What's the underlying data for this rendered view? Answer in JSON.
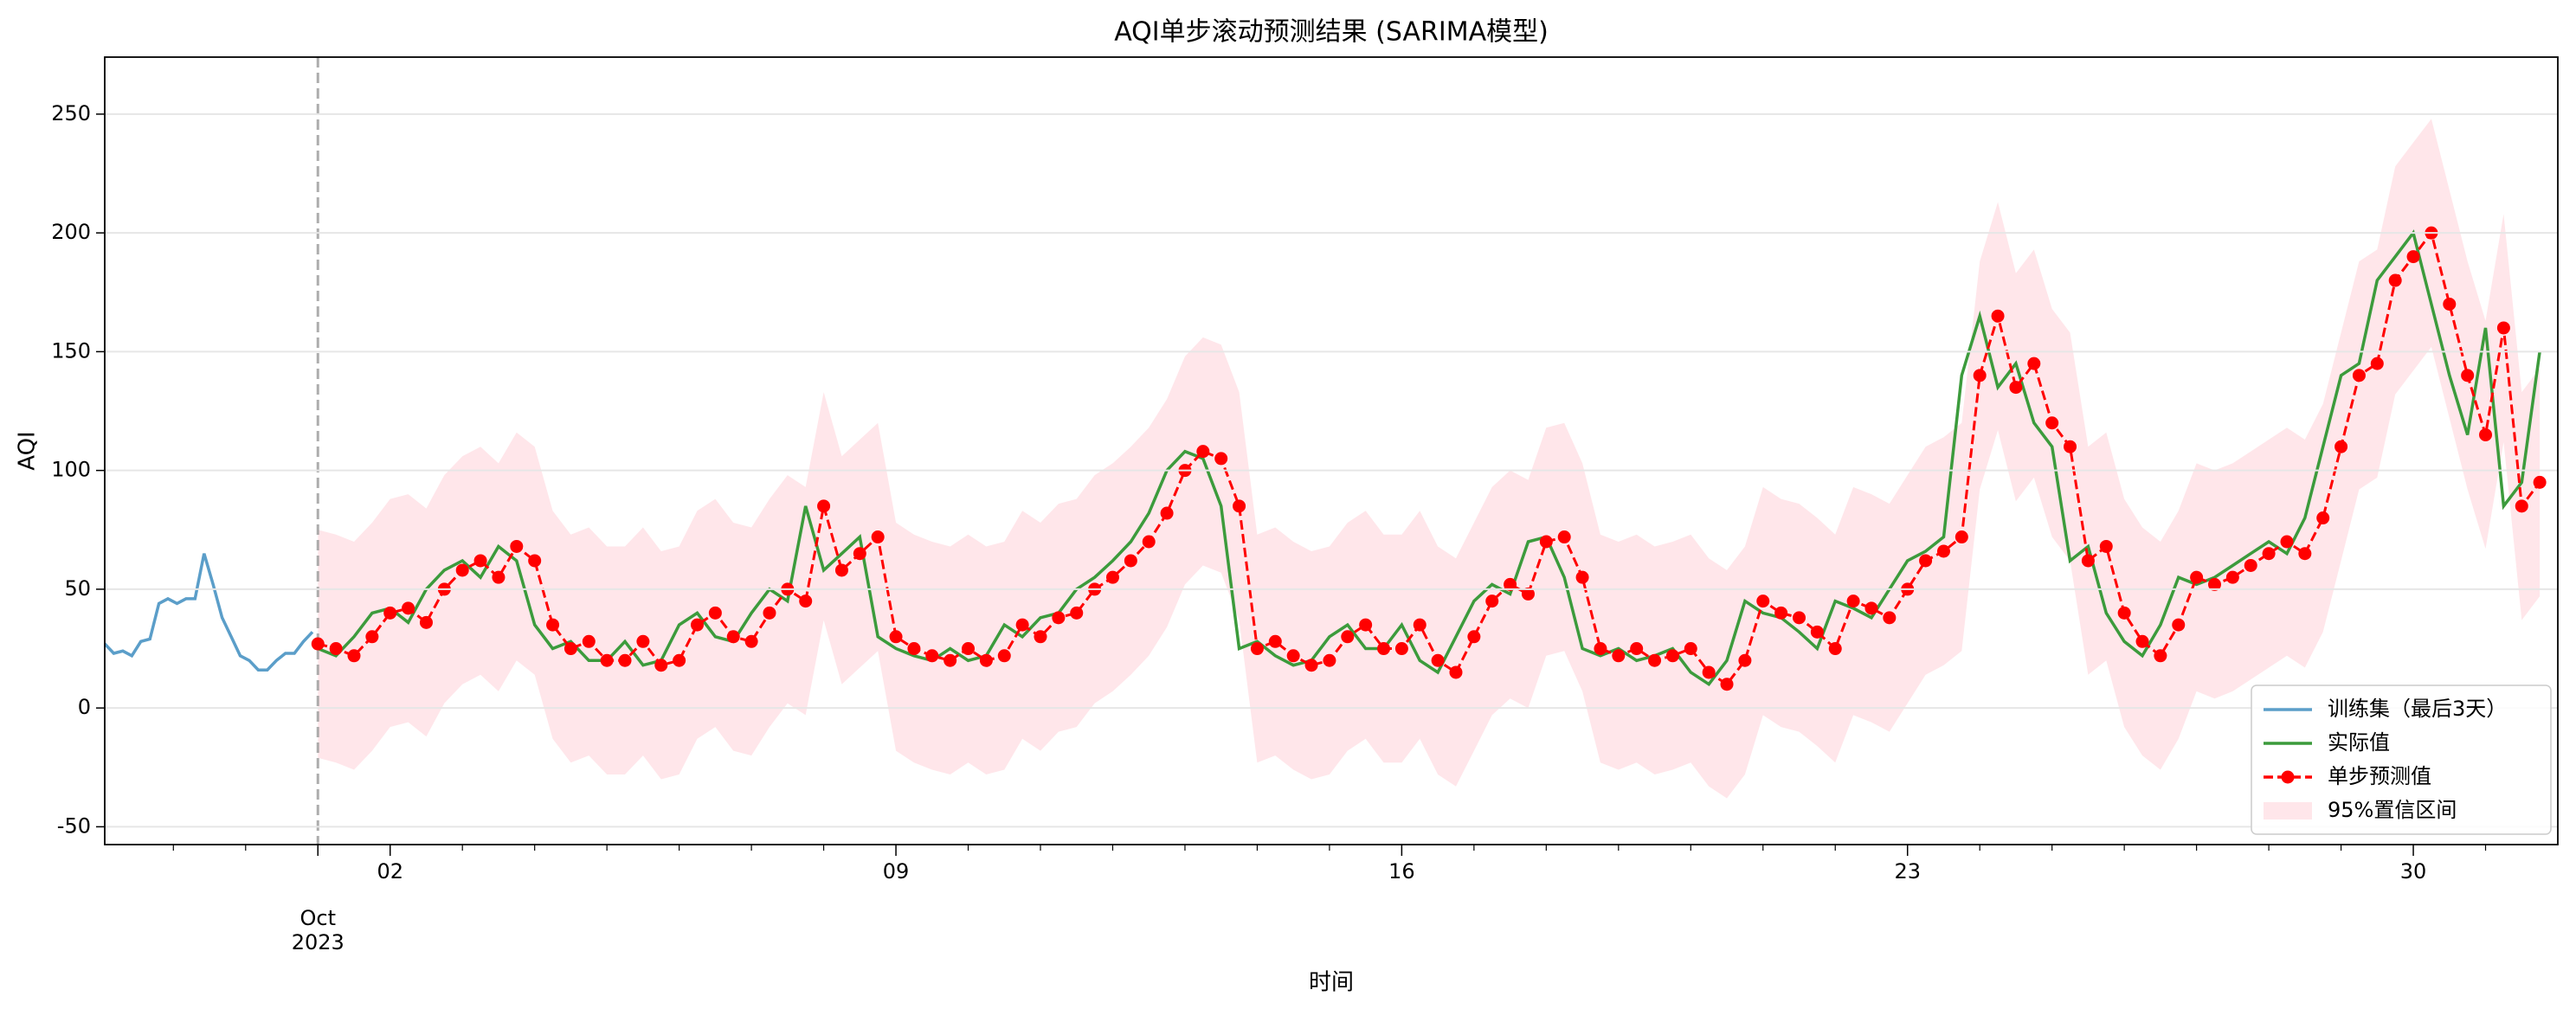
{
  "chart_data": {
    "type": "line",
    "title": "AQI单步滚动预测结果 (SARIMA模型)",
    "xlabel": "时间",
    "ylabel": "AQI",
    "xlim": [
      -1.95,
      32
    ],
    "ylim": [
      -57.5,
      274
    ],
    "yticks": [
      -50,
      0,
      50,
      100,
      150,
      200,
      250
    ],
    "xticks": [
      {
        "value": 1,
        "label": "Oct\n2023"
      },
      {
        "value": 2,
        "label": "02"
      },
      {
        "value": 9,
        "label": "09"
      },
      {
        "value": 16,
        "label": "16"
      },
      {
        "value": 23,
        "label": "23"
      },
      {
        "value": 30,
        "label": "30"
      }
    ],
    "xticks_minor": [
      -1,
      0,
      3,
      4,
      5,
      6,
      7,
      8,
      10,
      11,
      12,
      13,
      14,
      15,
      17,
      18,
      19,
      20,
      21,
      22,
      24,
      25,
      26,
      27,
      28,
      29,
      31
    ],
    "vline": 1,
    "grid": true,
    "legend": "lower right",
    "x": [
      1,
      1.25,
      1.5,
      1.75,
      2,
      2.25,
      2.5,
      2.75,
      3,
      3.25,
      3.5,
      3.75,
      4,
      4.25,
      4.5,
      4.75,
      5,
      5.25,
      5.5,
      5.75,
      6,
      6.25,
      6.5,
      6.75,
      7,
      7.25,
      7.5,
      7.75,
      8,
      8.25,
      8.5,
      8.75,
      9,
      9.25,
      9.5,
      9.75,
      10,
      10.25,
      10.5,
      10.75,
      11,
      11.25,
      11.5,
      11.75,
      12,
      12.25,
      12.5,
      12.75,
      13,
      13.25,
      13.5,
      13.75,
      14,
      14.25,
      14.5,
      14.75,
      15,
      15.25,
      15.5,
      15.75,
      16,
      16.25,
      16.5,
      16.75,
      17,
      17.25,
      17.5,
      17.75,
      18,
      18.25,
      18.5,
      18.75,
      19,
      19.25,
      19.5,
      19.75,
      20,
      20.25,
      20.5,
      20.75,
      21,
      21.25,
      21.5,
      21.75,
      22,
      22.25,
      22.5,
      22.75,
      23,
      23.25,
      23.5,
      23.75,
      24,
      24.25,
      24.5,
      24.75,
      25,
      25.25,
      25.5,
      25.75,
      26,
      26.25,
      26.5,
      26.75,
      27,
      27.25,
      27.5,
      27.75,
      28,
      28.25,
      28.5,
      28.75,
      29,
      29.25,
      29.5,
      29.75,
      30,
      30.25,
      30.5,
      30.75,
      31,
      31.25,
      31.5,
      31.75
    ],
    "series": [
      {
        "name": "训练集（最后3天）",
        "color": "#5b9ec9",
        "x": [
          -1.95,
          -1.825,
          -1.7,
          -1.575,
          -1.45,
          -1.325,
          -1.2,
          -1.075,
          -0.95,
          -0.825,
          -0.7,
          -0.575,
          -0.45,
          -0.325,
          -0.2,
          -0.075,
          0.05,
          0.175,
          0.3,
          0.425,
          0.55,
          0.675,
          0.8,
          0.925
        ],
        "values": [
          27,
          23,
          24,
          22,
          28,
          29,
          44,
          46,
          44,
          46,
          46,
          65,
          52,
          38,
          30,
          22,
          20,
          16,
          16,
          20,
          23,
          23,
          28,
          32
        ]
      },
      {
        "name": "实际值",
        "color": "#3c9b3c",
        "values": [
          25,
          22,
          30,
          40,
          42,
          36,
          50,
          58,
          62,
          55,
          68,
          62,
          35,
          25,
          28,
          20,
          20,
          28,
          18,
          20,
          35,
          40,
          30,
          28,
          40,
          50,
          45,
          85,
          58,
          65,
          72,
          30,
          25,
          22,
          20,
          25,
          20,
          22,
          35,
          30,
          38,
          40,
          50,
          55,
          62,
          70,
          82,
          100,
          108,
          105,
          85,
          25,
          28,
          22,
          18,
          20,
          30,
          35,
          25,
          25,
          35,
          20,
          15,
          30,
          45,
          52,
          48,
          70,
          72,
          55,
          25,
          22,
          25,
          20,
          22,
          25,
          15,
          10,
          20,
          45,
          40,
          38,
          32,
          25,
          45,
          42,
          38,
          50,
          62,
          66,
          72,
          140,
          165,
          135,
          145,
          120,
          110,
          62,
          68,
          40,
          28,
          22,
          35,
          55,
          52,
          55,
          60,
          65,
          70,
          65,
          80,
          110,
          140,
          145,
          180,
          190,
          200,
          170,
          140,
          115,
          160,
          85,
          95,
          150
        ]
      },
      {
        "name": "单步预测值",
        "color": "#ff0000",
        "values": [
          27,
          25,
          22,
          30,
          40,
          42,
          36,
          50,
          58,
          62,
          55,
          68,
          62,
          35,
          25,
          28,
          20,
          20,
          28,
          18,
          20,
          35,
          40,
          30,
          28,
          40,
          50,
          45,
          85,
          58,
          65,
          72,
          30,
          25,
          22,
          20,
          25,
          20,
          22,
          35,
          30,
          38,
          40,
          50,
          55,
          62,
          70,
          82,
          100,
          108,
          105,
          85,
          25,
          28,
          22,
          18,
          20,
          30,
          35,
          25,
          25,
          35,
          20,
          15,
          30,
          45,
          52,
          48,
          70,
          72,
          55,
          25,
          22,
          25,
          20,
          22,
          25,
          15,
          10,
          20,
          45,
          40,
          38,
          32,
          25,
          45,
          42,
          38,
          50,
          62,
          66,
          72,
          140,
          165,
          135,
          145,
          120,
          110,
          62,
          68,
          40,
          28,
          22,
          35,
          55,
          52,
          55,
          60,
          65,
          70,
          65,
          80,
          110,
          140,
          145,
          180,
          190,
          200,
          170,
          140,
          115,
          160,
          85,
          95
        ]
      },
      {
        "name": "95%置信区间",
        "color": "#ffc0cb",
        "upper": [
          75,
          73,
          70,
          78,
          88,
          90,
          84,
          98,
          106,
          110,
          103,
          116,
          110,
          83,
          73,
          76,
          68,
          68,
          76,
          66,
          68,
          83,
          88,
          78,
          76,
          88,
          98,
          93,
          133,
          106,
          113,
          120,
          78,
          73,
          70,
          68,
          73,
          68,
          70,
          83,
          78,
          86,
          88,
          98,
          103,
          110,
          118,
          130,
          148,
          156,
          153,
          133,
          73,
          76,
          70,
          66,
          68,
          78,
          83,
          73,
          73,
          83,
          68,
          63,
          78,
          93,
          100,
          96,
          118,
          120,
          103,
          73,
          70,
          73,
          68,
          70,
          73,
          63,
          58,
          68,
          93,
          88,
          86,
          80,
          73,
          93,
          90,
          86,
          98,
          110,
          114,
          120,
          188,
          213,
          183,
          193,
          168,
          158,
          110,
          116,
          88,
          76,
          70,
          83,
          103,
          100,
          103,
          108,
          113,
          118,
          113,
          128,
          158,
          188,
          193,
          228,
          238,
          248,
          218,
          188,
          163,
          208,
          133,
          143
        ],
        "lower": [
          -21,
          -23,
          -26,
          -18,
          -8,
          -6,
          -12,
          2,
          10,
          14,
          7,
          20,
          14,
          -13,
          -23,
          -20,
          -28,
          -28,
          -20,
          -30,
          -28,
          -13,
          -8,
          -18,
          -20,
          -8,
          2,
          -3,
          37,
          10,
          17,
          24,
          -18,
          -23,
          -26,
          -28,
          -23,
          -28,
          -26,
          -13,
          -18,
          -10,
          -8,
          2,
          7,
          14,
          22,
          34,
          52,
          60,
          57,
          37,
          -23,
          -20,
          -26,
          -30,
          -28,
          -18,
          -13,
          -23,
          -23,
          -13,
          -28,
          -33,
          -18,
          -3,
          4,
          0,
          22,
          24,
          7,
          -23,
          -26,
          -23,
          -28,
          -26,
          -23,
          -33,
          -38,
          -28,
          -3,
          -8,
          -10,
          -16,
          -23,
          -3,
          -6,
          -10,
          2,
          14,
          18,
          24,
          92,
          117,
          87,
          97,
          72,
          62,
          14,
          20,
          -8,
          -20,
          -26,
          -13,
          7,
          4,
          7,
          12,
          17,
          22,
          17,
          32,
          62,
          92,
          97,
          132,
          142,
          152,
          122,
          92,
          67,
          112,
          37,
          47
        ]
      }
    ]
  }
}
